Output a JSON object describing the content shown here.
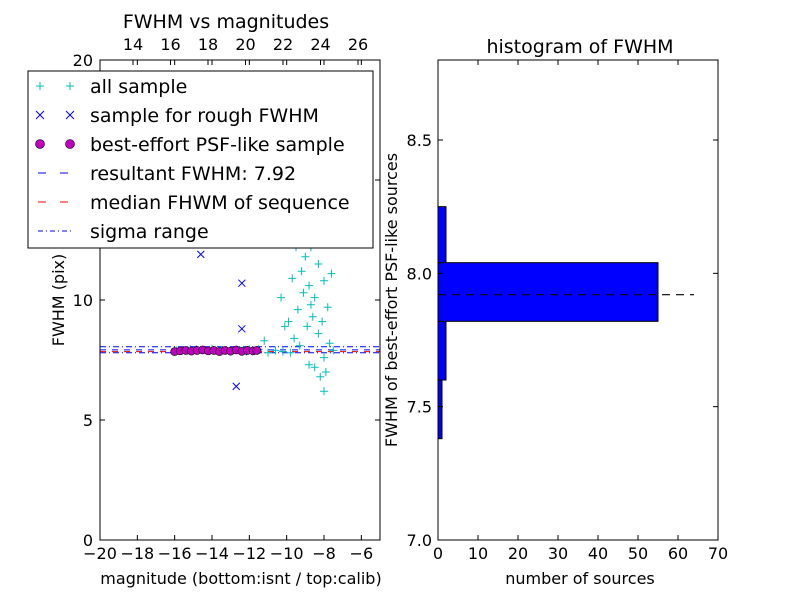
{
  "chart_data": [
    {
      "type": "scatter",
      "title": "FWHM vs magnitudes",
      "xlabel": "magnitude (bottom:isnt / top:calib)",
      "ylabel": "FWHM (pix)",
      "xlim": [
        -20,
        -5
      ],
      "ylim": [
        0,
        20
      ],
      "x_ticks": [
        "−20",
        "−18",
        "−16",
        "−14",
        "−12",
        "−10",
        "−8",
        "−6"
      ],
      "y_ticks": [
        "0",
        "5",
        "10",
        "15",
        "20"
      ],
      "top_ticks": [
        "14",
        "16",
        "18",
        "20",
        "22",
        "24",
        "26"
      ],
      "legend_position": "upper-left",
      "legend": [
        {
          "label": "all sample",
          "marker": "+",
          "color": "#00bfbf"
        },
        {
          "label": "sample for rough FWHM",
          "marker": "x",
          "color": "#0000ff"
        },
        {
          "label": "best-effort PSF-like sample",
          "marker": "o",
          "color": "#bf00bf"
        },
        {
          "label": "resultant FWHM: 7.92",
          "marker": "dashed",
          "color": "#0000ff"
        },
        {
          "label": "median FHWM of sequence",
          "marker": "dashed",
          "color": "#ff0000"
        },
        {
          "label": "sigma range",
          "marker": "dashdot",
          "color": "#0000ff"
        }
      ],
      "series": [
        {
          "name": "all sample",
          "points": [
            [
              -15.9,
              7.9
            ],
            [
              -15.3,
              7.9
            ],
            [
              -14.5,
              7.92
            ],
            [
              -14,
              7.95
            ],
            [
              -13.5,
              7.92
            ],
            [
              -13,
              7.85
            ],
            [
              -12.5,
              7.9
            ],
            [
              -12,
              7.95
            ],
            [
              -11.5,
              7.95
            ],
            [
              -11,
              7.8
            ],
            [
              -10.6,
              7.9
            ],
            [
              -10.2,
              7.85
            ],
            [
              -9.8,
              7.8
            ],
            [
              -9.6,
              8.4
            ],
            [
              -9.4,
              9.6
            ],
            [
              -9.2,
              11.2
            ],
            [
              -9.0,
              11.8
            ],
            [
              -8.9,
              8.9
            ],
            [
              -8.8,
              10.6
            ],
            [
              -8.7,
              12.2
            ],
            [
              -8.6,
              9.3
            ],
            [
              -8.5,
              10.1
            ],
            [
              -8.4,
              12.9
            ],
            [
              -8.3,
              8.6
            ],
            [
              -8.3,
              11.5
            ],
            [
              -8.2,
              13.6
            ],
            [
              -8.1,
              9.1
            ],
            [
              -8.0,
              10.8
            ],
            [
              -8.0,
              7.6
            ],
            [
              -7.9,
              12.4
            ],
            [
              -7.8,
              9.7
            ],
            [
              -7.7,
              8.2
            ],
            [
              -7.6,
              11.1
            ],
            [
              -7.5,
              7.9
            ],
            [
              -8.2,
              6.8
            ],
            [
              -8.5,
              7.2
            ],
            [
              -9.1,
              10.3
            ],
            [
              -8.9,
              12.7
            ],
            [
              -8.6,
              14.3
            ],
            [
              -8.4,
              13.2
            ],
            [
              -8.1,
              14.6
            ],
            [
              -10.3,
              10.1
            ],
            [
              -9.7,
              10.9
            ],
            [
              -9.5,
              12.2
            ],
            [
              -10.1,
              8.9
            ],
            [
              -11.2,
              8.3
            ],
            [
              -9.9,
              9.1
            ],
            [
              -8.8,
              7.3
            ],
            [
              -8.0,
              6.2
            ],
            [
              -7.9,
              7.0
            ],
            [
              -8.7,
              9.8
            ],
            [
              -9.3,
              8.1
            ]
          ]
        },
        {
          "name": "sample for rough FWHM",
          "points": [
            [
              -14.6,
              11.9
            ],
            [
              -12.4,
              10.7
            ],
            [
              -12.4,
              8.8
            ],
            [
              -12.7,
              6.4
            ],
            [
              -15.0,
              7.95
            ],
            [
              -13.2,
              7.9
            ],
            [
              -12.0,
              7.85
            ]
          ]
        },
        {
          "name": "best-effort PSF-like sample",
          "points": [
            [
              -16.0,
              7.85
            ],
            [
              -15.7,
              7.88
            ],
            [
              -15.4,
              7.9
            ],
            [
              -15.1,
              7.87
            ],
            [
              -14.8,
              7.9
            ],
            [
              -14.5,
              7.92
            ],
            [
              -14.2,
              7.88
            ],
            [
              -13.9,
              7.9
            ],
            [
              -13.6,
              7.85
            ],
            [
              -13.3,
              7.9
            ],
            [
              -13.0,
              7.87
            ],
            [
              -12.7,
              7.92
            ],
            [
              -12.4,
              7.86
            ],
            [
              -12.1,
              7.9
            ],
            [
              -11.8,
              7.88
            ],
            [
              -11.6,
              7.9
            ]
          ]
        }
      ],
      "lines": {
        "resultant_fwhm": 7.92,
        "median_fwhm": 7.85,
        "sigma_range": [
          7.8,
          8.05
        ]
      }
    },
    {
      "type": "bar",
      "orientation": "horizontal",
      "title": "histogram of FWHM",
      "xlabel": "number of sources",
      "ylabel": "FWHM of best-effort PSF-like sources",
      "xlim": [
        0,
        70
      ],
      "ylim": [
        7.0,
        8.8
      ],
      "x_ticks": [
        "0",
        "10",
        "20",
        "30",
        "40",
        "50",
        "60",
        "70"
      ],
      "y_ticks": [
        "7.0",
        "7.5",
        "8.0",
        "8.5"
      ],
      "bins": [
        {
          "from": 7.38,
          "to": 7.6,
          "count": 1
        },
        {
          "from": 7.6,
          "to": 7.82,
          "count": 2
        },
        {
          "from": 7.82,
          "to": 8.04,
          "count": 55
        },
        {
          "from": 8.04,
          "to": 8.25,
          "count": 2
        }
      ],
      "bar_color": "#0000ff",
      "reference_line": 7.92,
      "reference_line_xlim": [
        0,
        64
      ]
    }
  ]
}
